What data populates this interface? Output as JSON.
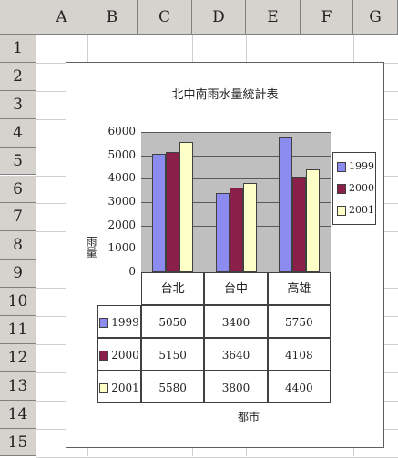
{
  "spreadsheet": {
    "columns": [
      "A",
      "B",
      "C",
      "D",
      "E",
      "F",
      "G"
    ],
    "rows": [
      "1",
      "2",
      "3",
      "4",
      "5",
      "6",
      "7",
      "8",
      "9",
      "10",
      "11",
      "12",
      "13",
      "14",
      "15"
    ]
  },
  "chart_data": {
    "type": "bar",
    "title": "北中南雨水量統計表",
    "xlabel": "都市",
    "ylabel": "雨量",
    "categories": [
      "台北",
      "台中",
      "高雄"
    ],
    "series": [
      {
        "name": "1999",
        "values": [
          5050,
          3400,
          5750
        ],
        "color": "#8c8cf0"
      },
      {
        "name": "2000",
        "values": [
          5150,
          3640,
          4108
        ],
        "color": "#8a1f4a"
      },
      {
        "name": "2001",
        "values": [
          5580,
          3800,
          4400
        ],
        "color": "#ffffc8"
      }
    ],
    "ylim": [
      0,
      6000
    ],
    "yticks": [
      "6000",
      "5000",
      "4000",
      "3000",
      "2000",
      "1000",
      "0"
    ],
    "grid": true,
    "legend": "right",
    "data_table": [
      [
        "5050",
        "3400",
        "5750"
      ],
      [
        "5150",
        "3640",
        "4108"
      ],
      [
        "5580",
        "3800",
        "4400"
      ]
    ]
  }
}
